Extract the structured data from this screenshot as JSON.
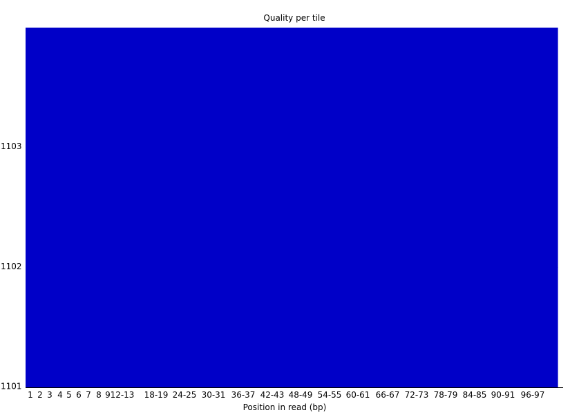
{
  "chart_data": {
    "type": "heatmap",
    "title": "Quality per tile",
    "xlabel": "Position in read (bp)",
    "ylabel": "",
    "x_tick_labels": [
      "1",
      "2",
      "3",
      "4",
      "5",
      "6",
      "7",
      "8",
      "9",
      "12-13",
      "18-19",
      "24-25",
      "30-31",
      "36-37",
      "42-43",
      "48-49",
      "54-55",
      "60-61",
      "66-67",
      "72-73",
      "78-79",
      "84-85",
      "90-91",
      "96-97"
    ],
    "tiles": [
      "1103",
      "1102",
      "1101"
    ],
    "y_tick_labels": [
      "1103",
      "1102",
      "1101"
    ],
    "n_columns": 55,
    "series": [
      {
        "name": "1103",
        "values": [
          0,
          0,
          0,
          0,
          0,
          0,
          0,
          0,
          0,
          0,
          0,
          0,
          0,
          0,
          0,
          0,
          0,
          0,
          0,
          0,
          0,
          0,
          0,
          0,
          0,
          0,
          0,
          0,
          0,
          0,
          0,
          0,
          0,
          0,
          0,
          0,
          0,
          0,
          0,
          0,
          0,
          0,
          0,
          0,
          0,
          0,
          0,
          0,
          0,
          0,
          0,
          0,
          0,
          0,
          0
        ]
      },
      {
        "name": "1102",
        "values": [
          0,
          0,
          0,
          0,
          0,
          0,
          0,
          0,
          0,
          0,
          0,
          0,
          0,
          0,
          0,
          0,
          0,
          0,
          0,
          0,
          0,
          0,
          0,
          0,
          0,
          0,
          0,
          0,
          0,
          0,
          0,
          0,
          0,
          0,
          0,
          0,
          0,
          0,
          0,
          0,
          0,
          0,
          0,
          0,
          0,
          0,
          0,
          0,
          0,
          0,
          0,
          0,
          0,
          0,
          0
        ]
      },
      {
        "name": "1101",
        "values": [
          0,
          0,
          0,
          0,
          0,
          0,
          0,
          0,
          0,
          0,
          0,
          0,
          0,
          0,
          0,
          0,
          0,
          0,
          0,
          0,
          0,
          0,
          0,
          0,
          0,
          0,
          0,
          0,
          0,
          0,
          0,
          0,
          0,
          0,
          0,
          0,
          0,
          0,
          0,
          0,
          0,
          0,
          0,
          0,
          0,
          0,
          0,
          0,
          0,
          0,
          0,
          0,
          0,
          0,
          0
        ]
      }
    ],
    "color_scale": {
      "low": "#0000c8",
      "high": "#1a40e0"
    },
    "grid": false,
    "legend": "none"
  }
}
